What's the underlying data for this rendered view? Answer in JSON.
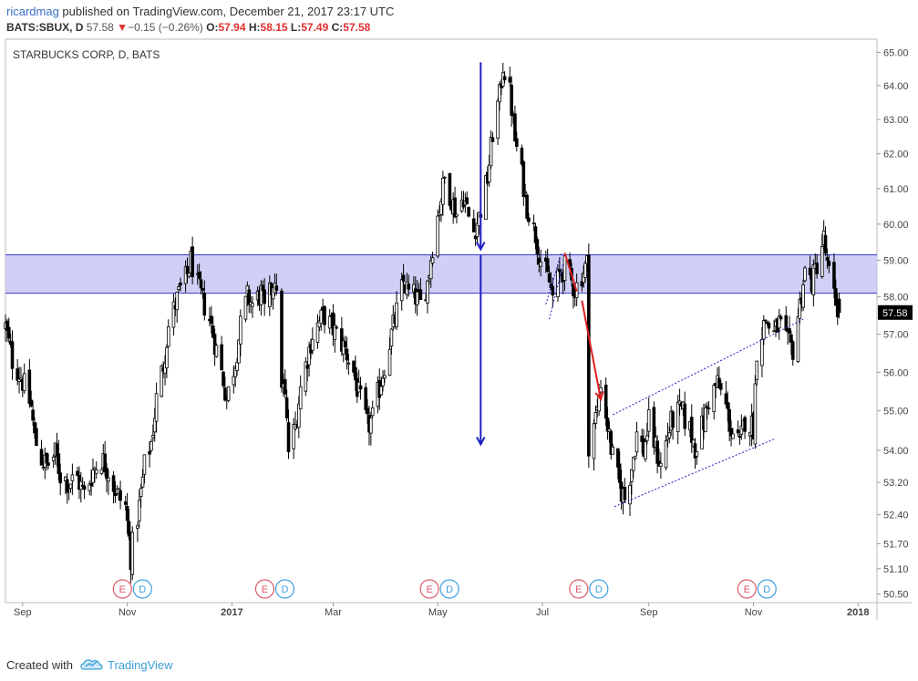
{
  "header": {
    "user": "ricardmag",
    "published": " published on TradingView.com, December 21, 2017 23:17 UTC",
    "symbol": "BATS:SBUX, D",
    "last": "57.58",
    "arrow": "▼",
    "change": "−0.15 (−0.26%)",
    "o_label": "O:",
    "o_val": "57.94",
    "h_label": "H:",
    "h_val": "58.15",
    "l_label": "L:",
    "l_val": "57.49",
    "c_label": "C:",
    "c_val": "57.58"
  },
  "footer": {
    "created_with": "Created with",
    "brand": "TradingView"
  },
  "colors": {
    "candle": "#000000",
    "zone_fill": "#c8c8f5",
    "zone_line": "#3b3bcf",
    "blue_arrow": "#1f1fc4",
    "red_arrow": "#e02020",
    "earnings_e": "#e05a6a",
    "dividend_d": "#3aa0e0"
  },
  "chart_data": {
    "type": "candlestick",
    "title": "STARBUCKS CORP, D, BATS",
    "y_ticks": [
      "65.00",
      "64.00",
      "63.00",
      "62.00",
      "61.00",
      "60.00",
      "59.00",
      "58.00",
      "57.00",
      "56.00",
      "55.00",
      "54.00",
      "53.20",
      "52.40",
      "51.70",
      "51.10",
      "50.50"
    ],
    "ylim": [
      50.3,
      65.4
    ],
    "y_scale": "log",
    "x_ticks": [
      {
        "label": "Sep",
        "date": "2016-09-01",
        "bold": false
      },
      {
        "label": "Nov",
        "date": "2016-11-01",
        "bold": false
      },
      {
        "label": "2017",
        "date": "2017-01-01",
        "bold": true
      },
      {
        "label": "Mar",
        "date": "2017-03-01",
        "bold": false
      },
      {
        "label": "May",
        "date": "2017-05-01",
        "bold": false
      },
      {
        "label": "Jul",
        "date": "2017-07-01",
        "bold": false
      },
      {
        "label": "Sep",
        "date": "2017-09-01",
        "bold": false
      },
      {
        "label": "Nov",
        "date": "2017-11-01",
        "bold": false
      },
      {
        "label": "2018",
        "date": "2018-01-01",
        "bold": true
      }
    ],
    "xlim": [
      "2016-08-22",
      "2018-01-12"
    ],
    "last_price": "57.58",
    "shaded_zone": {
      "low": 58.1,
      "high": 59.15
    },
    "events": [
      {
        "date": "2016-11-04",
        "e": "E",
        "d": "D"
      },
      {
        "date": "2017-01-26",
        "e": "E",
        "d": "D"
      },
      {
        "date": "2017-05-02",
        "e": "E",
        "d": "D"
      },
      {
        "date": "2017-07-28",
        "e": "E",
        "d": "D"
      },
      {
        "date": "2017-11-03",
        "e": "E",
        "d": "D"
      }
    ],
    "annotations": {
      "blue_arrow_short": {
        "date": "2017-05-26",
        "from": 64.7,
        "to": 59.3
      },
      "blue_arrow_long": {
        "date": "2017-05-26",
        "from": 59.15,
        "to": 54.15
      },
      "red_arrow_1": {
        "from": {
          "date": "2017-07-14",
          "price": 59.2
        },
        "to": {
          "date": "2017-07-21",
          "price": 58.15
        }
      },
      "red_arrow_2": {
        "from": {
          "date": "2017-07-24",
          "price": 57.9
        },
        "to": {
          "date": "2017-08-04",
          "price": 55.3
        }
      },
      "channel_upper": {
        "from": {
          "date": "2017-08-11",
          "price": 54.9
        },
        "to": {
          "date": "2017-11-30",
          "price": 57.4
        }
      },
      "channel_lower": {
        "from": {
          "date": "2017-08-12",
          "price": 52.6
        },
        "to": {
          "date": "2017-11-14",
          "price": 54.3
        }
      },
      "wedge_upper": {
        "from": {
          "date": "2017-07-03",
          "price": 57.8
        },
        "to": {
          "date": "2017-07-12",
          "price": 59.2
        }
      },
      "wedge_lower": {
        "from": {
          "date": "2017-07-05",
          "price": 57.4
        },
        "to": {
          "date": "2017-07-13",
          "price": 58.9
        }
      }
    },
    "path": [
      [
        "2016-08-22",
        57.2
      ],
      [
        "2016-08-26",
        56.3
      ],
      [
        "2016-08-31",
        55.9
      ],
      [
        "2016-09-06",
        55.1
      ],
      [
        "2016-09-08",
        54.3
      ],
      [
        "2016-09-12",
        53.8
      ],
      [
        "2016-09-15",
        53.6
      ],
      [
        "2016-09-20",
        53.9
      ],
      [
        "2016-09-23",
        53.4
      ],
      [
        "2016-09-28",
        53.2
      ],
      [
        "2016-10-03",
        53.3
      ],
      [
        "2016-10-07",
        52.9
      ],
      [
        "2016-10-12",
        53.5
      ],
      [
        "2016-10-17",
        53.8
      ],
      [
        "2016-10-21",
        53.5
      ],
      [
        "2016-10-26",
        52.9
      ],
      [
        "2016-10-31",
        52.6
      ],
      [
        "2016-11-03",
        51.4
      ],
      [
        "2016-11-08",
        52.6
      ],
      [
        "2016-11-11",
        53.6
      ],
      [
        "2016-11-15",
        54.2
      ],
      [
        "2016-11-18",
        55.3
      ],
      [
        "2016-11-22",
        56.2
      ],
      [
        "2016-11-25",
        57.2
      ],
      [
        "2016-11-29",
        57.8
      ],
      [
        "2016-12-02",
        58.2
      ],
      [
        "2016-12-06",
        58.6
      ],
      [
        "2016-12-08",
        59.0
      ],
      [
        "2016-12-12",
        58.3
      ],
      [
        "2016-12-15",
        57.9
      ],
      [
        "2016-12-19",
        57.4
      ],
      [
        "2016-12-22",
        56.8
      ],
      [
        "2016-12-27",
        55.8
      ],
      [
        "2016-12-29",
        55.3
      ],
      [
        "2017-01-03",
        56.3
      ],
      [
        "2017-01-06",
        57.2
      ],
      [
        "2017-01-10",
        58.0
      ],
      [
        "2017-01-13",
        57.8
      ],
      [
        "2017-01-18",
        58.1
      ],
      [
        "2017-01-20",
        57.6
      ],
      [
        "2017-01-24",
        58.2
      ],
      [
        "2017-01-26",
        58.6
      ],
      [
        "2017-01-30",
        55.8
      ],
      [
        "2017-02-01",
        55.3
      ],
      [
        "2017-02-03",
        54.0
      ],
      [
        "2017-02-07",
        54.6
      ],
      [
        "2017-02-10",
        55.6
      ],
      [
        "2017-02-14",
        56.4
      ],
      [
        "2017-02-17",
        57.0
      ],
      [
        "2017-02-22",
        57.4
      ],
      [
        "2017-02-24",
        57.5
      ],
      [
        "2017-02-28",
        57.2
      ],
      [
        "2017-03-03",
        57.0
      ],
      [
        "2017-03-08",
        56.6
      ],
      [
        "2017-03-13",
        56.0
      ],
      [
        "2017-03-16",
        55.4
      ],
      [
        "2017-03-21",
        54.6
      ],
      [
        "2017-03-24",
        54.8
      ],
      [
        "2017-03-28",
        55.6
      ],
      [
        "2017-03-31",
        56.2
      ],
      [
        "2017-04-04",
        57.0
      ],
      [
        "2017-04-07",
        57.6
      ],
      [
        "2017-04-11",
        58.4
      ],
      [
        "2017-04-14",
        58.1
      ],
      [
        "2017-04-18",
        58.0
      ],
      [
        "2017-04-21",
        57.8
      ],
      [
        "2017-04-25",
        58.4
      ],
      [
        "2017-04-28",
        59.4
      ],
      [
        "2017-05-02",
        60.5
      ],
      [
        "2017-05-05",
        61.3
      ],
      [
        "2017-05-09",
        60.7
      ],
      [
        "2017-05-12",
        60.3
      ],
      [
        "2017-05-16",
        60.8
      ],
      [
        "2017-05-19",
        60.2
      ],
      [
        "2017-05-22",
        59.8
      ],
      [
        "2017-05-25",
        60.2
      ],
      [
        "2017-05-30",
        61.3
      ],
      [
        "2017-06-02",
        62.6
      ],
      [
        "2017-06-06",
        63.7
      ],
      [
        "2017-06-08",
        64.6
      ],
      [
        "2017-06-12",
        63.8
      ],
      [
        "2017-06-15",
        62.4
      ],
      [
        "2017-06-19",
        61.4
      ],
      [
        "2017-06-22",
        60.5
      ],
      [
        "2017-06-27",
        59.7
      ],
      [
        "2017-06-30",
        59.0
      ],
      [
        "2017-07-05",
        58.4
      ],
      [
        "2017-07-07",
        58.0
      ],
      [
        "2017-07-11",
        58.6
      ],
      [
        "2017-07-14",
        58.8
      ],
      [
        "2017-07-18",
        58.4
      ],
      [
        "2017-07-20",
        58.2
      ],
      [
        "2017-07-24",
        58.6
      ],
      [
        "2017-07-27",
        58.9
      ],
      [
        "2017-07-28",
        54.2
      ],
      [
        "2017-08-02",
        55.0
      ],
      [
        "2017-08-04",
        55.8
      ],
      [
        "2017-08-08",
        54.6
      ],
      [
        "2017-08-11",
        53.8
      ],
      [
        "2017-08-15",
        53.1
      ],
      [
        "2017-08-18",
        52.8
      ],
      [
        "2017-08-22",
        53.6
      ],
      [
        "2017-08-25",
        54.4
      ],
      [
        "2017-08-29",
        54.0
      ],
      [
        "2017-09-01",
        54.7
      ],
      [
        "2017-09-06",
        53.9
      ],
      [
        "2017-09-08",
        53.6
      ],
      [
        "2017-09-12",
        54.4
      ],
      [
        "2017-09-15",
        54.8
      ],
      [
        "2017-09-20",
        55.0
      ],
      [
        "2017-09-25",
        54.5
      ],
      [
        "2017-09-28",
        54.1
      ],
      [
        "2017-10-03",
        54.7
      ],
      [
        "2017-10-06",
        55.3
      ],
      [
        "2017-10-11",
        55.7
      ],
      [
        "2017-10-16",
        55.1
      ],
      [
        "2017-10-19",
        54.5
      ],
      [
        "2017-10-24",
        54.1
      ],
      [
        "2017-10-27",
        54.8
      ],
      [
        "2017-11-01",
        54.6
      ],
      [
        "2017-11-03",
        56.6
      ],
      [
        "2017-11-08",
        57.4
      ],
      [
        "2017-11-13",
        57.0
      ],
      [
        "2017-11-16",
        57.3
      ],
      [
        "2017-11-20",
        56.8
      ],
      [
        "2017-11-24",
        56.6
      ],
      [
        "2017-11-28",
        57.8
      ],
      [
        "2017-12-01",
        58.7
      ],
      [
        "2017-12-05",
        58.4
      ],
      [
        "2017-12-08",
        58.9
      ],
      [
        "2017-12-12",
        59.6
      ],
      [
        "2017-12-14",
        58.8
      ],
      [
        "2017-12-18",
        58.0
      ],
      [
        "2017-12-21",
        57.58
      ]
    ]
  }
}
